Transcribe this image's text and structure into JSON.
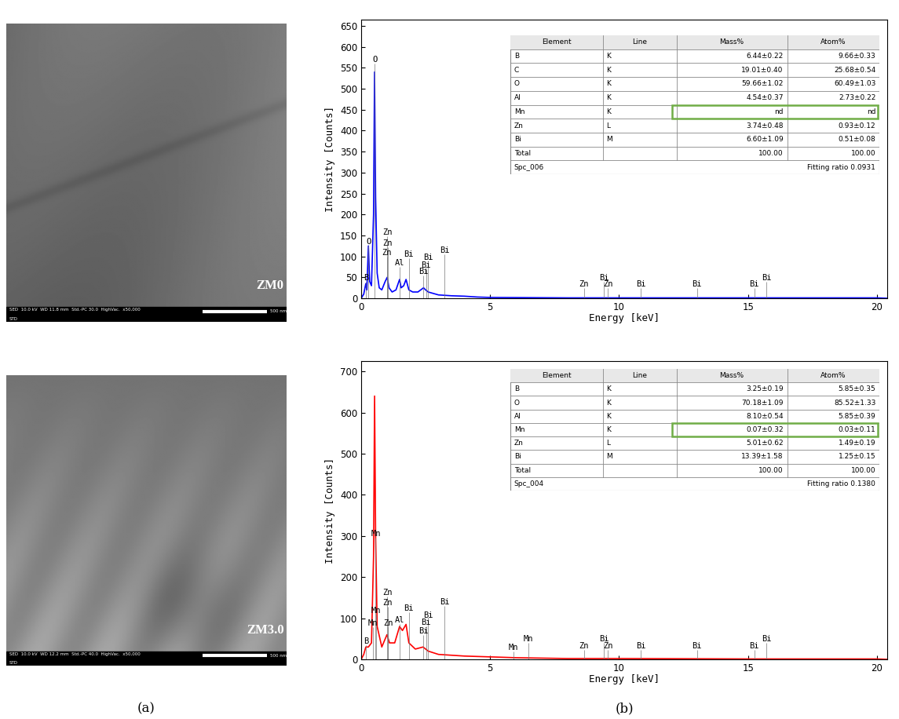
{
  "chart_data": [
    {
      "type": "line",
      "x_label": "Energy [keV]",
      "y_label": "Intensity [Counts]",
      "xlim": [
        0,
        20.4
      ],
      "xticks": [
        0,
        5,
        10,
        15,
        20
      ],
      "ylim": [
        0,
        665
      ],
      "yticks": [
        0,
        50,
        100,
        150,
        200,
        250,
        300,
        350,
        400,
        450,
        500,
        550,
        600,
        650
      ],
      "color": "#0000ff",
      "x": [
        0,
        0.1,
        0.18,
        0.22,
        0.28,
        0.33,
        0.4,
        0.48,
        0.52,
        0.56,
        0.62,
        0.7,
        0.8,
        0.93,
        1.01,
        1.08,
        1.2,
        1.35,
        1.49,
        1.55,
        1.65,
        1.74,
        1.85,
        2.0,
        2.2,
        2.42,
        2.5,
        2.6,
        3.0,
        3.5,
        4.0,
        4.5,
        5.0,
        8.0,
        10.0,
        15.0,
        20.0,
        20.4
      ],
      "values": [
        0,
        10,
        35,
        20,
        125,
        40,
        30,
        200,
        540,
        240,
        60,
        25,
        20,
        40,
        50,
        25,
        15,
        20,
        45,
        25,
        30,
        45,
        20,
        15,
        15,
        25,
        20,
        15,
        8,
        6,
        5,
        3,
        2,
        1,
        1,
        1,
        1,
        0
      ],
      "peak_labels": [
        {
          "label": "B",
          "x": 0.18,
          "y": 40
        },
        {
          "label": "O",
          "x": 0.28,
          "y": 125
        },
        {
          "label": "O",
          "x": 0.52,
          "y": 560
        },
        {
          "label": "Zn",
          "x": 1.01,
          "y": 148
        },
        {
          "label": "Zn",
          "x": 1.03,
          "y": 122
        },
        {
          "label": "Zn",
          "x": 1.0,
          "y": 100
        },
        {
          "label": "Al",
          "x": 1.49,
          "y": 75
        },
        {
          "label": "Bi",
          "x": 1.85,
          "y": 95
        },
        {
          "label": "Bi",
          "x": 2.42,
          "y": 55
        },
        {
          "label": "Bi",
          "x": 2.52,
          "y": 70
        },
        {
          "label": "Bi",
          "x": 2.6,
          "y": 88
        },
        {
          "label": "Bi",
          "x": 3.23,
          "y": 105
        },
        {
          "label": "Zn",
          "x": 8.64,
          "y": 25
        },
        {
          "label": "Zn",
          "x": 9.57,
          "y": 25
        },
        {
          "label": "Bi",
          "x": 9.42,
          "y": 40
        },
        {
          "label": "Bi",
          "x": 10.84,
          "y": 25
        },
        {
          "label": "Bi",
          "x": 13.02,
          "y": 25
        },
        {
          "label": "Bi",
          "x": 15.25,
          "y": 25
        },
        {
          "label": "Bi",
          "x": 15.71,
          "y": 40
        }
      ],
      "table": {
        "header": [
          "Element",
          "Line",
          "Mass%",
          "Atom%"
        ],
        "rows": [
          [
            "B",
            "K",
            "6.44±0.22",
            "9.66±0.33"
          ],
          [
            "C",
            "K",
            "19.01±0.40",
            "25.68±0.54"
          ],
          [
            "O",
            "K",
            "59.66±1.02",
            "60.49±1.03"
          ],
          [
            "Al",
            "K",
            "4.54±0.37",
            "2.73±0.22"
          ],
          [
            "Mn",
            "K",
            "nd",
            "nd"
          ],
          [
            "Zn",
            "L",
            "3.74±0.48",
            "0.93±0.12"
          ],
          [
            "Bi",
            "M",
            "6.60±1.09",
            "0.51±0.08"
          ],
          [
            "Total",
            "",
            "100.00",
            "100.00"
          ]
        ],
        "footer": [
          "Spc_006",
          "Fitting ratio 0.0931"
        ],
        "highlight": "Mn"
      }
    },
    {
      "type": "line",
      "x_label": "Energy [keV]",
      "y_label": "Intensity [Counts]",
      "xlim": [
        0,
        20.4
      ],
      "xticks": [
        0,
        5,
        10,
        15,
        20
      ],
      "ylim": [
        0,
        725
      ],
      "yticks": [
        0,
        100,
        200,
        300,
        400,
        500,
        600,
        700
      ],
      "color": "#ff0000",
      "x": [
        0,
        0.1,
        0.18,
        0.28,
        0.4,
        0.48,
        0.52,
        0.56,
        0.62,
        0.8,
        1.0,
        1.1,
        1.3,
        1.49,
        1.6,
        1.74,
        1.85,
        2.1,
        2.4,
        2.6,
        3.0,
        3.5,
        4.0,
        5.0,
        6.0,
        8.0,
        10.0,
        15.0,
        20.0,
        20.4
      ],
      "values": [
        0,
        12,
        30,
        30,
        40,
        250,
        640,
        300,
        80,
        30,
        60,
        40,
        40,
        80,
        70,
        85,
        40,
        25,
        30,
        20,
        12,
        10,
        8,
        6,
        4,
        2,
        2,
        1,
        1,
        0
      ],
      "peak_labels": [
        {
          "label": "B",
          "x": 0.18,
          "y": 35
        },
        {
          "label": "Mn",
          "x": 0.56,
          "y": 295
        },
        {
          "label": "Mn",
          "x": 0.58,
          "y": 108
        },
        {
          "label": "Mn",
          "x": 0.45,
          "y": 78
        },
        {
          "label": "Zn",
          "x": 1.01,
          "y": 152
        },
        {
          "label": "Zn",
          "x": 1.03,
          "y": 128
        },
        {
          "label": "Zn",
          "x": 1.05,
          "y": 78
        },
        {
          "label": "Al",
          "x": 1.49,
          "y": 85
        },
        {
          "label": "Bi",
          "x": 1.85,
          "y": 115
        },
        {
          "label": "Bi",
          "x": 2.42,
          "y": 60
        },
        {
          "label": "Bi",
          "x": 2.52,
          "y": 80
        },
        {
          "label": "Bi",
          "x": 2.6,
          "y": 98
        },
        {
          "label": "Bi",
          "x": 3.23,
          "y": 130
        },
        {
          "label": "Mn",
          "x": 5.9,
          "y": 20
        },
        {
          "label": "Mn",
          "x": 6.49,
          "y": 40
        },
        {
          "label": "Zn",
          "x": 8.64,
          "y": 22
        },
        {
          "label": "Zn",
          "x": 9.57,
          "y": 22
        },
        {
          "label": "Bi",
          "x": 9.42,
          "y": 40
        },
        {
          "label": "Bi",
          "x": 10.84,
          "y": 22
        },
        {
          "label": "Bi",
          "x": 13.02,
          "y": 22
        },
        {
          "label": "Bi",
          "x": 15.25,
          "y": 22
        },
        {
          "label": "Bi",
          "x": 15.71,
          "y": 40
        }
      ],
      "table": {
        "header": [
          "Element",
          "Line",
          "Mass%",
          "Atom%"
        ],
        "rows": [
          [
            "B",
            "K",
            "3.25±0.19",
            "5.85±0.35"
          ],
          [
            "O",
            "K",
            "70.18±1.09",
            "85.52±1.33"
          ],
          [
            "Al",
            "K",
            "8.10±0.54",
            "5.85±0.39"
          ],
          [
            "Mn",
            "K",
            "0.07±0.32",
            "0.03±0.11"
          ],
          [
            "Zn",
            "L",
            "5.01±0.62",
            "1.49±0.19"
          ],
          [
            "Bi",
            "M",
            "13.39±1.58",
            "1.25±0.15"
          ],
          [
            "Total",
            "",
            "100.00",
            "100.00"
          ]
        ],
        "footer": [
          "Spc_004",
          "Fitting ratio 0.1380"
        ],
        "highlight": "Mn"
      }
    }
  ],
  "images": [
    {
      "label": "ZM0",
      "info": "SED  10.0 kV  WD 11.8 mm  Std.-PC 30.0  HighVac.  x50,000",
      "footer": "STD",
      "scale_bar": "500 nm"
    },
    {
      "label": "ZM3.0",
      "info": "SED  10.0 kV  WD 12.2 mm  Std.-PC 40.0  HighVac.  x50,000",
      "footer": "STD",
      "scale_bar": "500 nm"
    }
  ],
  "panel_labels": [
    "(a)",
    "(b)"
  ]
}
